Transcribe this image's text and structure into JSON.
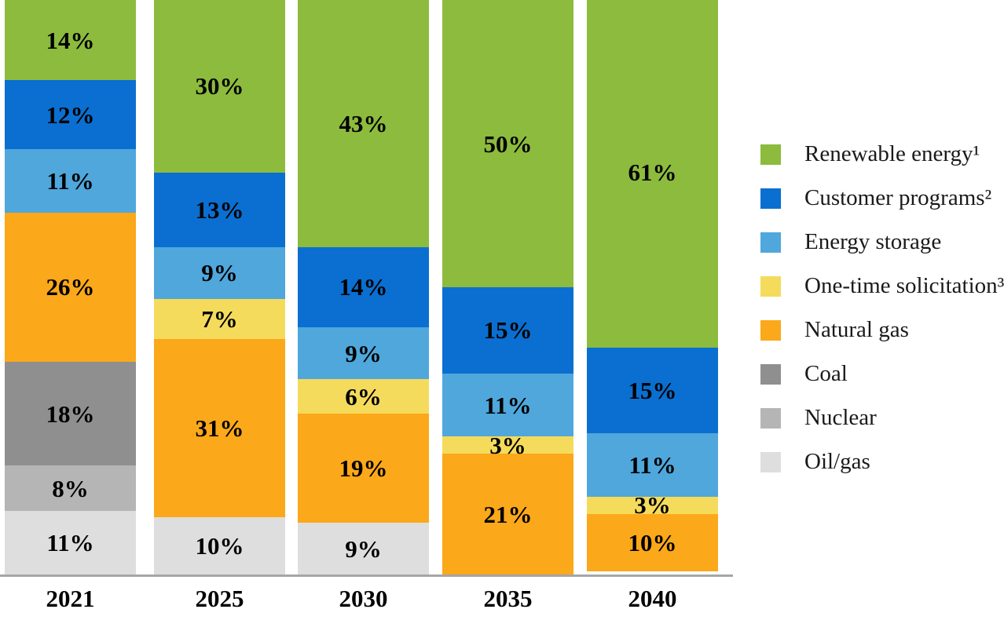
{
  "chart_data": {
    "type": "bar",
    "stacked": true,
    "percent_chart": true,
    "title": "",
    "xlabel": "",
    "ylabel": "",
    "ylim": [
      0,
      100
    ],
    "grid": false,
    "legend_position": "right",
    "unit": "%",
    "categories": [
      "2021",
      "2025",
      "2030",
      "2035",
      "2040"
    ],
    "series": [
      {
        "name": "Renewable energy¹",
        "color": "#8cbb3e",
        "values": [
          14,
          30,
          43,
          50,
          61
        ]
      },
      {
        "name": "Customer programs²",
        "color": "#0a6fd1",
        "values": [
          12,
          13,
          14,
          15,
          15
        ]
      },
      {
        "name": "Energy storage",
        "color": "#4fa7dc",
        "values": [
          11,
          9,
          9,
          11,
          11
        ]
      },
      {
        "name": "One-time solicitation³",
        "color": "#f5db5c",
        "values": [
          0,
          7,
          6,
          3,
          3
        ]
      },
      {
        "name": "Natural gas",
        "color": "#fba81a",
        "values": [
          26,
          31,
          19,
          21,
          10
        ]
      },
      {
        "name": "Coal",
        "color": "#8f8f8f",
        "values": [
          18,
          0,
          0,
          0,
          0
        ]
      },
      {
        "name": "Nuclear",
        "color": "#b5b5b5",
        "values": [
          8,
          0,
          0,
          0,
          0
        ]
      },
      {
        "name": "Oil/gas",
        "color": "#dedede",
        "values": [
          11,
          10,
          9,
          0,
          0
        ]
      }
    ],
    "axis_color": "#a6a6a6",
    "label_format": "{value}%"
  }
}
